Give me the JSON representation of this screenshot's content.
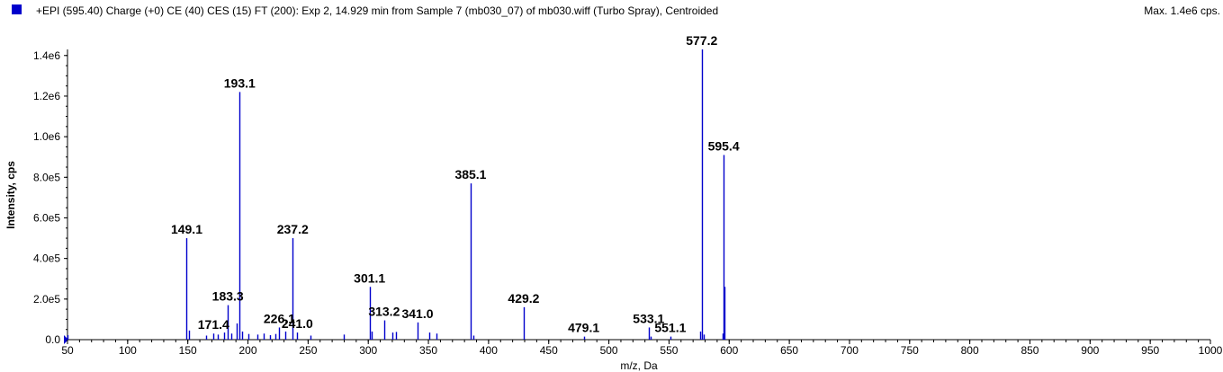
{
  "header": {
    "title": "+EPI (595.40) Charge (+0) CE (40) CES (15) FT (200): Exp 2, 14.929 min from Sample 7 (mb030_07) of mb030.wiff (Turbo Spray), Centroided",
    "max_label": "Max. 1.4e6 cps.",
    "legend_color": "#0000cc"
  },
  "chart_data": {
    "type": "bar",
    "title": "",
    "xlabel": "m/z, Da",
    "ylabel": "Intensity, cps",
    "xlim": [
      50,
      1000
    ],
    "ylim": [
      0,
      1430000
    ],
    "x_ticks": [
      50,
      100,
      150,
      200,
      250,
      300,
      350,
      400,
      450,
      500,
      550,
      600,
      650,
      700,
      750,
      800,
      850,
      900,
      950,
      1000
    ],
    "y_ticks": [
      0,
      200000,
      400000,
      600000,
      800000,
      1000000,
      1200000,
      1400000
    ],
    "y_tick_labels": [
      "0.0",
      "2.0e5",
      "4.0e5",
      "6.0e5",
      "8.0e5",
      "1.0e6",
      "1.2e6",
      "1.4e6"
    ],
    "grid": false,
    "line_color": "#0000cc",
    "peaks": [
      {
        "mz": 50.2,
        "intensity": 22000
      },
      {
        "mz": 149.1,
        "intensity": 500000
      },
      {
        "mz": 151.0,
        "intensity": 45000
      },
      {
        "mz": 165.0,
        "intensity": 20000
      },
      {
        "mz": 171.4,
        "intensity": 30000
      },
      {
        "mz": 175.0,
        "intensity": 25000
      },
      {
        "mz": 180.0,
        "intensity": 35000
      },
      {
        "mz": 183.3,
        "intensity": 170000
      },
      {
        "mz": 186.0,
        "intensity": 30000
      },
      {
        "mz": 191.0,
        "intensity": 80000
      },
      {
        "mz": 193.1,
        "intensity": 1220000
      },
      {
        "mz": 195.0,
        "intensity": 40000
      },
      {
        "mz": 200.0,
        "intensity": 28000
      },
      {
        "mz": 208.0,
        "intensity": 25000
      },
      {
        "mz": 213.0,
        "intensity": 30000
      },
      {
        "mz": 218.0,
        "intensity": 22000
      },
      {
        "mz": 223.0,
        "intensity": 28000
      },
      {
        "mz": 226.1,
        "intensity": 60000
      },
      {
        "mz": 231.0,
        "intensity": 40000
      },
      {
        "mz": 237.2,
        "intensity": 500000
      },
      {
        "mz": 241.0,
        "intensity": 35000
      },
      {
        "mz": 252.0,
        "intensity": 20000
      },
      {
        "mz": 280.0,
        "intensity": 25000
      },
      {
        "mz": 301.1,
        "intensity": 260000
      },
      {
        "mz": 303.0,
        "intensity": 40000
      },
      {
        "mz": 313.2,
        "intensity": 95000
      },
      {
        "mz": 320.0,
        "intensity": 35000
      },
      {
        "mz": 323.0,
        "intensity": 38000
      },
      {
        "mz": 341.0,
        "intensity": 85000
      },
      {
        "mz": 351.0,
        "intensity": 35000
      },
      {
        "mz": 357.0,
        "intensity": 30000
      },
      {
        "mz": 385.1,
        "intensity": 770000
      },
      {
        "mz": 387.0,
        "intensity": 20000
      },
      {
        "mz": 429.2,
        "intensity": 160000
      },
      {
        "mz": 479.1,
        "intensity": 15000
      },
      {
        "mz": 533.1,
        "intensity": 60000
      },
      {
        "mz": 535.0,
        "intensity": 15000
      },
      {
        "mz": 551.1,
        "intensity": 15000
      },
      {
        "mz": 576.0,
        "intensity": 40000
      },
      {
        "mz": 577.2,
        "intensity": 1430000
      },
      {
        "mz": 579.0,
        "intensity": 25000
      },
      {
        "mz": 594.4,
        "intensity": 30000
      },
      {
        "mz": 595.4,
        "intensity": 910000
      },
      {
        "mz": 596.4,
        "intensity": 260000
      }
    ],
    "peak_labels": [
      {
        "text": "149.1",
        "mz": 149.1,
        "intensity": 500000
      },
      {
        "text": "171.4",
        "mz": 171.4,
        "intensity": 30000
      },
      {
        "text": "183.3",
        "mz": 183.3,
        "intensity": 170000
      },
      {
        "text": "193.1",
        "mz": 193.1,
        "intensity": 1220000
      },
      {
        "text": "226.1",
        "mz": 226.1,
        "intensity": 60000
      },
      {
        "text": "237.2",
        "mz": 237.2,
        "intensity": 500000
      },
      {
        "text": "241.0",
        "mz": 241.0,
        "intensity": 35000
      },
      {
        "text": "301.1",
        "mz": 301.1,
        "intensity": 260000
      },
      {
        "text": "313.2",
        "mz": 313.2,
        "intensity": 95000
      },
      {
        "text": "341.0",
        "mz": 341.0,
        "intensity": 85000
      },
      {
        "text": "385.1",
        "mz": 385.1,
        "intensity": 770000
      },
      {
        "text": "429.2",
        "mz": 429.2,
        "intensity": 160000
      },
      {
        "text": "479.1",
        "mz": 479.1,
        "intensity": 15000
      },
      {
        "text": "533.1",
        "mz": 533.1,
        "intensity": 60000
      },
      {
        "text": "551.1",
        "mz": 551.1,
        "intensity": 15000
      },
      {
        "text": "577.2",
        "mz": 577.2,
        "intensity": 1430000
      },
      {
        "text": "595.4",
        "mz": 595.4,
        "intensity": 910000
      }
    ]
  }
}
